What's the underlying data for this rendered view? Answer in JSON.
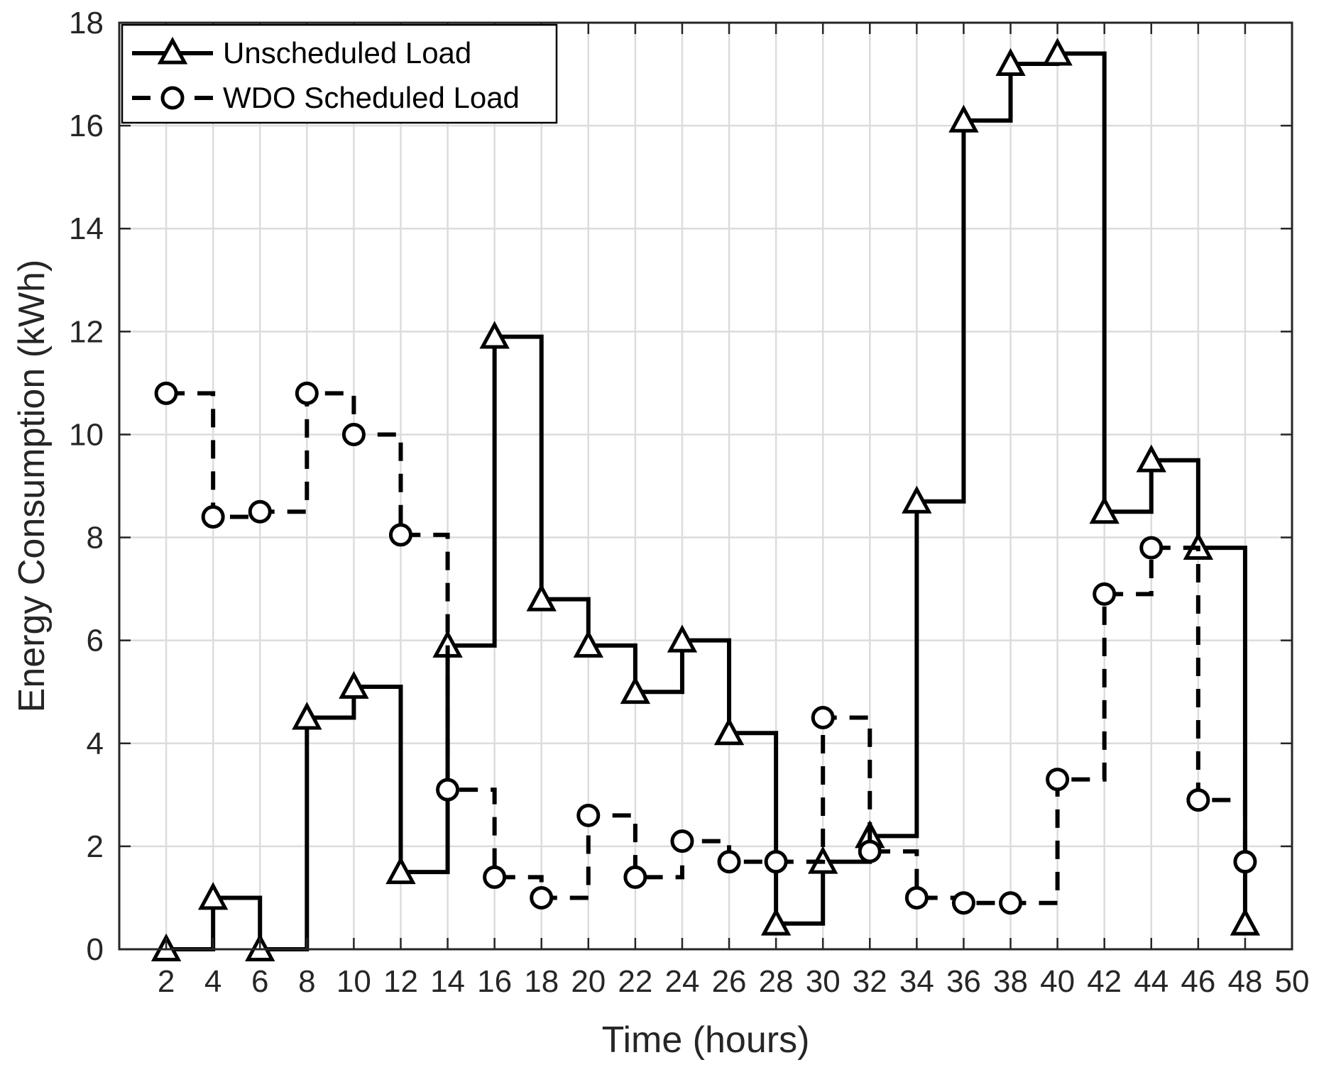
{
  "chart_data": {
    "type": "line",
    "title": "",
    "xlabel": "Time (hours)",
    "ylabel": "Energy Consumption (kWh)",
    "xlim": [
      0,
      50
    ],
    "ylim": [
      0,
      18
    ],
    "xticks": [
      2,
      4,
      6,
      8,
      10,
      12,
      14,
      16,
      18,
      20,
      22,
      24,
      26,
      28,
      30,
      32,
      34,
      36,
      38,
      40,
      42,
      44,
      46,
      48,
      50
    ],
    "yticks": [
      0,
      2,
      4,
      6,
      8,
      10,
      12,
      14,
      16,
      18
    ],
    "grid": true,
    "legend_position": "top-left",
    "x": [
      2,
      4,
      6,
      8,
      10,
      12,
      14,
      16,
      18,
      20,
      22,
      24,
      26,
      28,
      30,
      32,
      34,
      36,
      38,
      40,
      42,
      44,
      46,
      48
    ],
    "series": [
      {
        "name": "Unscheduled Load",
        "style": "solid",
        "marker": "triangle",
        "color": "#000000",
        "values": [
          0,
          1.0,
          0,
          4.5,
          5.1,
          1.5,
          5.9,
          11.9,
          6.8,
          5.9,
          5.0,
          6.0,
          4.2,
          0.5,
          1.7,
          2.2,
          8.7,
          16.1,
          17.2,
          17.4,
          8.5,
          9.5,
          7.8,
          0.5
        ]
      },
      {
        "name": "WDO Scheduled Load",
        "style": "dashed",
        "marker": "circle",
        "color": "#000000",
        "values": [
          10.8,
          8.4,
          8.5,
          10.8,
          10.0,
          8.05,
          3.1,
          1.4,
          1.0,
          2.6,
          1.4,
          2.1,
          1.7,
          1.7,
          4.5,
          1.9,
          1.0,
          0.9,
          0.9,
          3.3,
          6.9,
          7.8,
          2.9,
          1.7
        ]
      }
    ]
  }
}
